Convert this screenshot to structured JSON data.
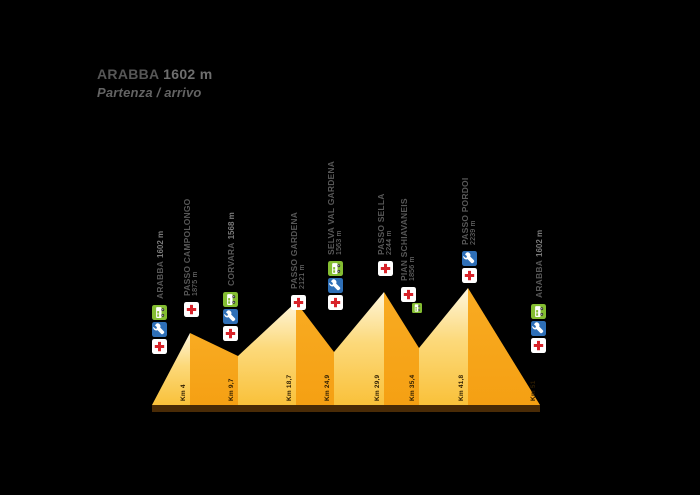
{
  "header": {
    "name": "ARABBA",
    "elevation": "1602 m",
    "subtitle": "Partenza / arrivo"
  },
  "stations": [
    {
      "name": "ARABBA",
      "elevation": "1602 m",
      "km": "",
      "icons": [
        "refreshment",
        "mechanic",
        "medical"
      ]
    },
    {
      "name": "PASSO CAMPOLONGO",
      "elevation": "1875 m",
      "km": "Km 4",
      "icons": [
        "medical"
      ]
    },
    {
      "name": "CORVARA",
      "elevation": "1568 m",
      "km": "Km 9,7",
      "icons": [
        "refreshment",
        "mechanic",
        "medical"
      ]
    },
    {
      "name": "PASSO GARDENA",
      "elevation": "2121 m",
      "km": "Km 18,7",
      "icons": [
        "medical"
      ]
    },
    {
      "name": "SELVA VAL GARDENA",
      "elevation": "1563 m",
      "km": "Km 24,9",
      "icons": [
        "refreshment",
        "mechanic",
        "medical"
      ]
    },
    {
      "name": "PASSO SELLA",
      "elevation": "2244 m",
      "km": "Km 29,9",
      "icons": [
        "medical"
      ]
    },
    {
      "name": "PIAN SCHIAVANEIS",
      "elevation": "1856 m",
      "km": "Km 35,4",
      "icons": [
        "medical",
        "refreshment"
      ]
    },
    {
      "name": "PASSO PORDOI",
      "elevation": "2239 m",
      "km": "Km 41,8",
      "icons": [
        "mechanic",
        "medical"
      ]
    },
    {
      "name": "ARABBA",
      "elevation": "1602 m",
      "km": "Km 51",
      "icons": [
        "refreshment",
        "mechanic",
        "medical"
      ]
    }
  ],
  "km_markers": [
    "Km 4",
    "Km 9,7",
    "Km 18,7",
    "Km 24,9",
    "Km 29,9",
    "Km 35,4",
    "Km 41,8",
    "Km 51"
  ],
  "icon_legend": {
    "medical": "red-cross",
    "mechanic": "wrench",
    "refreshment": "food-van"
  },
  "colors": {
    "background": "#000000",
    "peak_light_face": "#FCD97A",
    "peak_orange_face": "#F5A013",
    "base_strip": "#4A2B06",
    "medical_red": "#D8232A",
    "mechanic_blue": "#2E6FB7",
    "refreshment_green": "#84BD32",
    "label_gray": "#585858"
  },
  "chart_data": {
    "type": "area",
    "title": "ARABBA 1602 m — Partenza / arrivo",
    "xlabel": "Km",
    "ylabel": "m",
    "x": [
      0,
      4,
      9.7,
      18.7,
      24.9,
      29.9,
      35.4,
      41.8,
      51
    ],
    "points": [
      {
        "km": 0,
        "name": "Arabba",
        "elevation_m": 1602
      },
      {
        "km": 4,
        "name": "Passo Campolongo",
        "elevation_m": 1875
      },
      {
        "km": 9.7,
        "name": "Corvara",
        "elevation_m": 1568
      },
      {
        "km": 18.7,
        "name": "Passo Gardena",
        "elevation_m": 2121
      },
      {
        "km": 24.9,
        "name": "Selva Val Gardena",
        "elevation_m": 1563
      },
      {
        "km": 29.9,
        "name": "Passo Sella",
        "elevation_m": 2244
      },
      {
        "km": 35.4,
        "name": "Pian Schiavaneis",
        "elevation_m": 1856
      },
      {
        "km": 41.8,
        "name": "Passo Pordoi",
        "elevation_m": 2239
      },
      {
        "km": 51,
        "name": "Arabba",
        "elevation_m": 1602
      }
    ],
    "xlim": [
      0,
      51
    ],
    "grid": false,
    "legend": false
  }
}
